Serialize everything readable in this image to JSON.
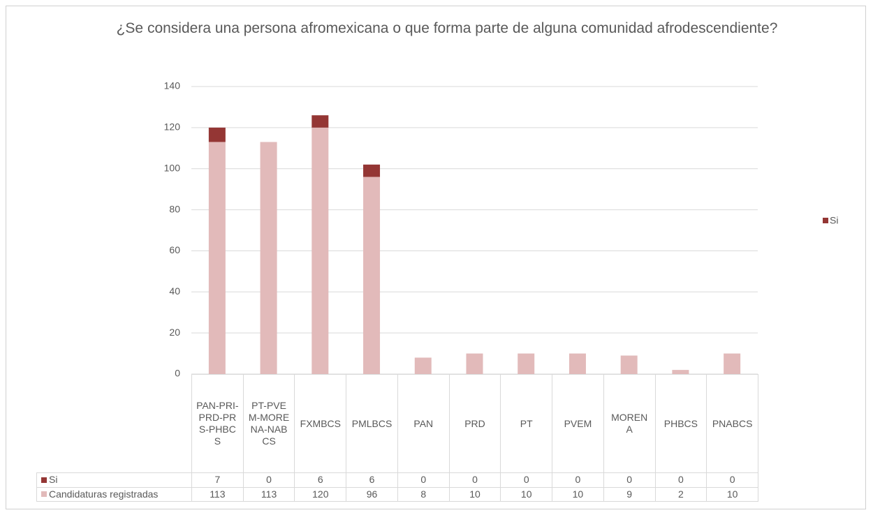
{
  "chart_data": {
    "type": "stacked_bar",
    "title": "¿Se considera una persona afromexicana o que forma parte de alguna comunidad afrodescendiente?",
    "categories": [
      "PAN-PRI-PRD-PRS-PHBCS",
      "PT-PVEM-MORENA-NABCS",
      "FXMBCS",
      "PMLBCS",
      "PAN",
      "PRD",
      "PT",
      "PVEM",
      "MORENA",
      "PHBCS",
      "PNABCS"
    ],
    "series": [
      {
        "name": "Si",
        "color": "#943634",
        "values": [
          7,
          0,
          6,
          6,
          0,
          0,
          0,
          0,
          0,
          0,
          0
        ]
      },
      {
        "name": "Candidaturas registradas",
        "color": "#e2baba",
        "values": [
          113,
          113,
          120,
          96,
          8,
          10,
          10,
          10,
          9,
          2,
          10
        ]
      }
    ],
    "stack_order": "bottom_last_series",
    "ylim": [
      0,
      140
    ],
    "yticks": [
      0,
      20,
      40,
      60,
      80,
      100,
      120,
      140
    ],
    "grid": true,
    "legend": "right"
  }
}
